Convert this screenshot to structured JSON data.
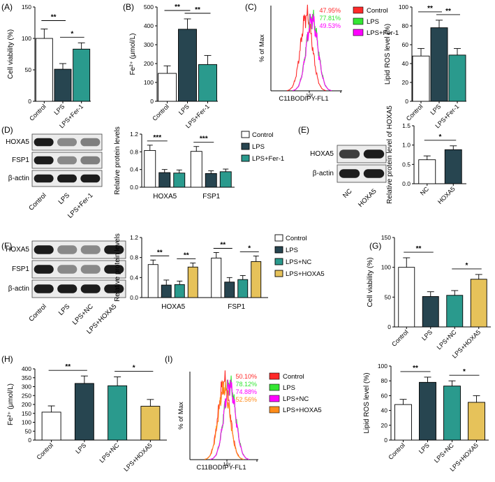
{
  "colors": {
    "white": "#ffffff",
    "dark": "#274550",
    "teal": "#2a9a8d",
    "gold": "#e6c25a",
    "red": "#ff2a2a",
    "green": "#33e633",
    "magenta": "#ff00ff",
    "orange": "#ff8c1a"
  },
  "chart_data": [
    {
      "id": "A",
      "panel_label": "(A)",
      "type": "bar",
      "ylabel": "Cell viability (%)",
      "ylim": [
        0,
        150
      ],
      "yticks": [
        "0",
        "50",
        "100",
        "150"
      ],
      "categories": [
        "Control",
        "LPS",
        "LPS+Fer-1"
      ],
      "values": [
        100,
        51,
        83
      ],
      "errors": [
        15,
        9,
        10
      ],
      "bar_colors": [
        "white",
        "dark",
        "teal"
      ],
      "sig": [
        {
          "from": 0,
          "to": 1,
          "label": "**"
        },
        {
          "from": 1,
          "to": 2,
          "label": "*"
        }
      ]
    },
    {
      "id": "B",
      "panel_label": "(B)",
      "type": "bar",
      "ylabel": "Fe²⁺ (μmol/L)",
      "ylim": [
        0,
        500
      ],
      "yticks": [
        "0",
        "100",
        "200",
        "300",
        "400",
        "500"
      ],
      "categories": [
        "Control",
        "LPS",
        "LPS+Fer-1"
      ],
      "values": [
        148,
        382,
        195
      ],
      "errors": [
        40,
        55,
        48
      ],
      "bar_colors": [
        "white",
        "dark",
        "teal"
      ],
      "sig": [
        {
          "from": 0,
          "to": 1,
          "label": "**"
        },
        {
          "from": 1,
          "to": 2,
          "label": "**"
        }
      ]
    },
    {
      "id": "C",
      "panel_label": "(C)",
      "type": "histogram",
      "ylabel": "% of Max",
      "xlabel": "C11BODIPY-FL1",
      "xtick": "10³",
      "series": [
        {
          "name": "Control",
          "value": "47.95%",
          "color": "red"
        },
        {
          "name": "LPS",
          "value": "77.81%",
          "color": "green"
        },
        {
          "name": "LPS+Fer-1",
          "value": "49.53%",
          "color": "magenta"
        }
      ]
    },
    {
      "id": "C2",
      "panel_label": "",
      "type": "bar",
      "ylabel": "Lipid ROS level (%)",
      "ylim": [
        0,
        100
      ],
      "yticks": [
        "0",
        "20",
        "40",
        "60",
        "80",
        "100"
      ],
      "categories": [
        "Control",
        "LPS",
        "LPS+Fer-1"
      ],
      "values": [
        48,
        78,
        49
      ],
      "errors": [
        8,
        8,
        7
      ],
      "bar_colors": [
        "white",
        "dark",
        "teal"
      ],
      "sig": [
        {
          "from": 0,
          "to": 1,
          "label": "**"
        },
        {
          "from": 1,
          "to": 2,
          "label": "**"
        }
      ]
    },
    {
      "id": "D",
      "panel_label": "(D)",
      "type": "grouped_bar",
      "ylabel": "Relative protein levels",
      "ylim": [
        0,
        1.2
      ],
      "yticks": [
        "0.0",
        "0.4",
        "0.8",
        "1.2"
      ],
      "categories": [
        "HOXA5",
        "FSP1"
      ],
      "series": [
        {
          "name": "Control",
          "color": "white",
          "values": [
            0.83,
            0.81
          ],
          "errors": [
            0.12,
            0.11
          ]
        },
        {
          "name": "LPS",
          "color": "dark",
          "values": [
            0.33,
            0.31
          ],
          "errors": [
            0.07,
            0.06
          ]
        },
        {
          "name": "LPS+Fer-1",
          "color": "teal",
          "values": [
            0.32,
            0.35
          ],
          "errors": [
            0.07,
            0.06
          ]
        }
      ],
      "sig": [
        {
          "cat": 0,
          "from": 0,
          "to": 1,
          "label": "***"
        },
        {
          "cat": 1,
          "from": 0,
          "to": 1,
          "label": "***"
        }
      ]
    },
    {
      "id": "E",
      "panel_label": "(E)",
      "type": "bar",
      "ylabel": "Relative protein level of HOXA5",
      "ylim": [
        0,
        1.5
      ],
      "yticks": [
        "0.0",
        "0.5",
        "1.0",
        "1.5"
      ],
      "categories": [
        "NC",
        "HOXA5"
      ],
      "values": [
        0.62,
        0.88
      ],
      "errors": [
        0.1,
        0.1
      ],
      "bar_colors": [
        "white",
        "dark"
      ],
      "sig": [
        {
          "from": 0,
          "to": 1,
          "label": "*"
        }
      ]
    },
    {
      "id": "F",
      "panel_label": "(F)",
      "type": "grouped_bar",
      "ylabel": "Relative protein levels",
      "ylim": [
        0,
        1.2
      ],
      "yticks": [
        "0.0",
        "0.4",
        "0.8",
        "1.2"
      ],
      "categories": [
        "HOXA5",
        "FSP1"
      ],
      "series": [
        {
          "name": "Control",
          "color": "white",
          "values": [
            0.66,
            0.79
          ],
          "errors": [
            0.09,
            0.11
          ]
        },
        {
          "name": "LPS",
          "color": "dark",
          "values": [
            0.25,
            0.31
          ],
          "errors": [
            0.1,
            0.09
          ]
        },
        {
          "name": "LPS+NC",
          "color": "teal",
          "values": [
            0.26,
            0.36
          ],
          "errors": [
            0.07,
            0.08
          ]
        },
        {
          "name": "LPS+HOXA5",
          "color": "gold",
          "values": [
            0.61,
            0.72
          ],
          "errors": [
            0.08,
            0.11
          ]
        }
      ],
      "sig": [
        {
          "cat": 0,
          "from": 0,
          "to": 1,
          "label": "**"
        },
        {
          "cat": 0,
          "from": 2,
          "to": 3,
          "label": "**"
        },
        {
          "cat": 1,
          "from": 0,
          "to": 1,
          "label": "**"
        },
        {
          "cat": 1,
          "from": 2,
          "to": 3,
          "label": "*"
        }
      ]
    },
    {
      "id": "G",
      "panel_label": "(G)",
      "type": "bar",
      "ylabel": "Cell viability (%)",
      "ylim": [
        0,
        150
      ],
      "yticks": [
        "0",
        "50",
        "100",
        "150"
      ],
      "categories": [
        "Control",
        "LPS",
        "LPS+NC",
        "LPS+HOXA5"
      ],
      "values": [
        100,
        51,
        53,
        80
      ],
      "errors": [
        16,
        8,
        8,
        8
      ],
      "bar_colors": [
        "white",
        "dark",
        "teal",
        "gold"
      ],
      "sig": [
        {
          "from": 0,
          "to": 1,
          "label": "**"
        },
        {
          "from": 2,
          "to": 3,
          "label": "*"
        }
      ]
    },
    {
      "id": "H",
      "panel_label": "(H)",
      "type": "bar",
      "ylabel": "Fe²⁺ (μmol/L)",
      "ylim": [
        0,
        400
      ],
      "yticks": [
        "0",
        "50",
        "100",
        "150",
        "200",
        "250",
        "300",
        "350",
        "400"
      ],
      "categories": [
        "Control",
        "LPS",
        "LPS+NC",
        "LPS+HOXA5"
      ],
      "values": [
        157,
        318,
        305,
        190
      ],
      "errors": [
        35,
        42,
        50,
        38
      ],
      "bar_colors": [
        "white",
        "dark",
        "teal",
        "gold"
      ],
      "sig": [
        {
          "from": 0,
          "to": 1,
          "label": "**"
        },
        {
          "from": 2,
          "to": 3,
          "label": "*"
        }
      ]
    },
    {
      "id": "I",
      "panel_label": "(I)",
      "type": "histogram",
      "ylabel": "% of Max",
      "xlabel": "C11BODIPY-FL1",
      "xtick": "10⁴",
      "series": [
        {
          "name": "Control",
          "value": "50.10%",
          "color": "red"
        },
        {
          "name": "LPS",
          "value": "78.12%",
          "color": "green"
        },
        {
          "name": "LPS+NC",
          "value": "74.88%",
          "color": "magenta"
        },
        {
          "name": "LPS+HOXA5",
          "value": "52.56%",
          "color": "orange"
        }
      ]
    },
    {
      "id": "I2",
      "panel_label": "",
      "type": "bar",
      "ylabel": "Lipid ROS level (%)",
      "ylim": [
        0,
        100
      ],
      "yticks": [
        "0",
        "20",
        "40",
        "60",
        "80",
        "100"
      ],
      "categories": [
        "Control",
        "LPS",
        "LPS+NC",
        "LPS+HOXA5"
      ],
      "values": [
        48,
        78,
        73,
        51
      ],
      "errors": [
        7,
        7,
        7,
        9
      ],
      "bar_colors": [
        "white",
        "dark",
        "teal",
        "gold"
      ],
      "sig": [
        {
          "from": 0,
          "to": 1,
          "label": "**"
        },
        {
          "from": 2,
          "to": 3,
          "label": "*"
        }
      ]
    }
  ],
  "blots": [
    {
      "id": "D",
      "rows": [
        "HOXA5",
        "FSP1",
        "β-actin"
      ],
      "lanes": [
        "Control",
        "LPS",
        "LPS+Fer-1"
      ]
    },
    {
      "id": "E",
      "rows": [
        "HOXA5",
        "β-actin"
      ],
      "lanes": [
        "NC",
        "HOXA5"
      ]
    },
    {
      "id": "F",
      "rows": [
        "HOXA5",
        "FSP1",
        "β-actin"
      ],
      "lanes": [
        "Control",
        "LPS",
        "LPS+NC",
        "LPS+HOXA5"
      ]
    }
  ]
}
